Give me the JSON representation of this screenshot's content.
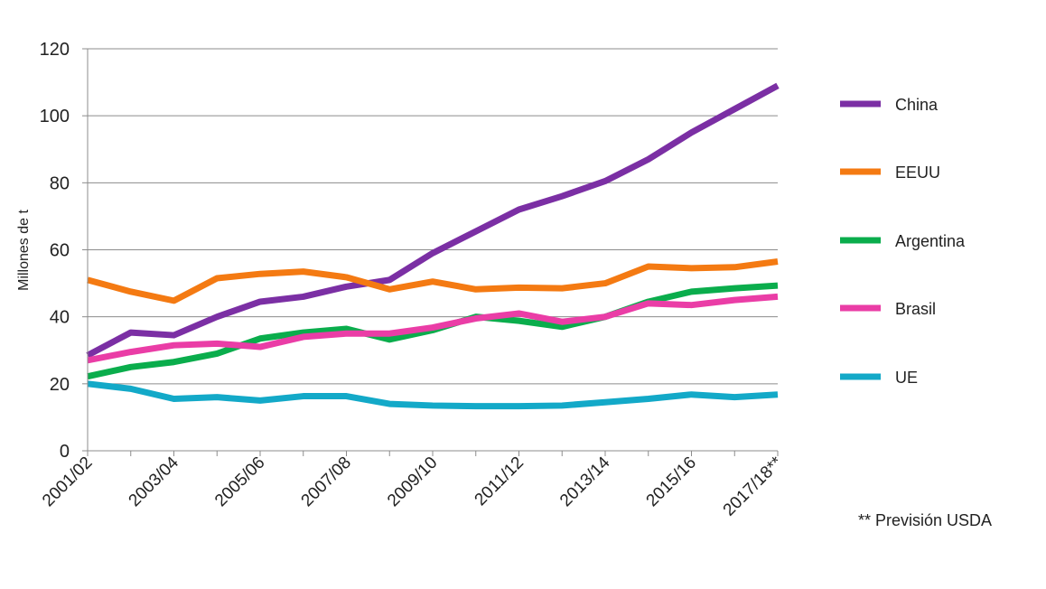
{
  "chart_data": {
    "type": "line",
    "title": "",
    "xlabel": "",
    "ylabel": "Millones de t",
    "ylim": [
      0,
      120
    ],
    "yticks": [
      0,
      20,
      40,
      60,
      80,
      100,
      120
    ],
    "grid": true,
    "legend_position": "right",
    "categories": [
      "2001/02",
      "2002/03",
      "2003/04",
      "2004/05",
      "2005/06",
      "2006/07",
      "2007/08",
      "2008/09",
      "2009/10",
      "2010/11",
      "2011/12",
      "2012/13",
      "2013/14",
      "2014/15",
      "2015/16",
      "2016/17",
      "2017/18**"
    ],
    "xtick_labels": [
      "2001/02",
      "2003/04",
      "2005/06",
      "2007/08",
      "2009/10",
      "2011/12",
      "2013/14",
      "2015/16",
      "2017/18**"
    ],
    "series": [
      {
        "name": "China",
        "color": "#7b2fa4",
        "values": [
          28.5,
          35.3,
          34.5,
          40,
          44.5,
          46,
          49,
          51,
          59,
          65.5,
          72,
          76,
          80.5,
          87,
          95,
          102,
          109
        ]
      },
      {
        "name": "EEUU",
        "color": "#f47a12",
        "values": [
          51,
          47.5,
          44.8,
          51.5,
          52.8,
          53.5,
          51.8,
          48.2,
          50.5,
          48.2,
          48.7,
          48.5,
          50,
          55,
          54.5,
          54.8,
          56.5
        ]
      },
      {
        "name": "Argentina",
        "color": "#0aad4c",
        "values": [
          22.2,
          25,
          26.5,
          29,
          33.5,
          35.3,
          36.4,
          33.2,
          36,
          40,
          38.8,
          37,
          40,
          44.5,
          47.5,
          48.5,
          49.3
        ]
      },
      {
        "name": "Brasil",
        "color": "#ea3da6",
        "values": [
          27,
          29.5,
          31.5,
          32,
          31,
          34,
          35,
          35,
          36.8,
          39.5,
          41,
          38.5,
          40,
          44,
          43.5,
          45,
          46
        ]
      },
      {
        "name": "UE",
        "color": "#13a9c8",
        "values": [
          20,
          18.5,
          15.5,
          16,
          15,
          16.3,
          16.3,
          14,
          13.5,
          13.3,
          13.3,
          13.5,
          14.5,
          15.5,
          16.8,
          16,
          16.8
        ]
      }
    ],
    "annotations": [
      "** Previsión USDA"
    ]
  }
}
